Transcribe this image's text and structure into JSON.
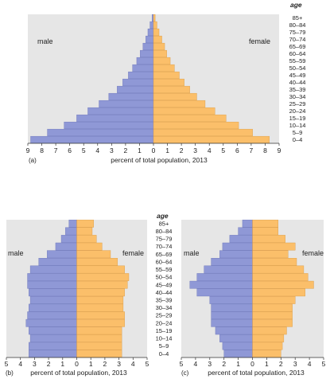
{
  "age_groups": [
    "0–4",
    "5–9",
    "10–14",
    "15–19",
    "20–24",
    "25–29",
    "30–34",
    "35–39",
    "40–44",
    "45–49",
    "50–54",
    "55–59",
    "60–64",
    "65–69",
    "70–74",
    "75–79",
    "80–84",
    "85+"
  ],
  "colors": {
    "male": "#8f98d6",
    "female": "#fbbf6a",
    "male_stroke": "#6a73b8",
    "female_stroke": "#d99a44",
    "panel": "#e6e6e6"
  },
  "chart_data": [
    {
      "type": "bar",
      "orientation": "horizontal-population-pyramid",
      "panel_label": "(a)",
      "xlabel": "percent of total population, 2013",
      "age_axis_label": "age",
      "categories": [
        "0–4",
        "5–9",
        "10–14",
        "15–19",
        "20–24",
        "25–29",
        "30–34",
        "35–39",
        "40–44",
        "45–49",
        "50–54",
        "55–59",
        "60–64",
        "65–69",
        "70–74",
        "75–79",
        "80–84",
        "85+"
      ],
      "series": [
        {
          "name": "male",
          "values": [
            8.8,
            7.6,
            6.4,
            5.5,
            4.7,
            3.9,
            3.2,
            2.6,
            2.2,
            1.8,
            1.5,
            1.2,
            0.95,
            0.75,
            0.55,
            0.4,
            0.25,
            0.1
          ]
        },
        {
          "name": "female",
          "values": [
            8.3,
            7.1,
            6.1,
            5.2,
            4.4,
            3.7,
            3.1,
            2.6,
            2.2,
            1.85,
            1.5,
            1.2,
            0.95,
            0.8,
            0.6,
            0.4,
            0.25,
            0.12
          ]
        }
      ],
      "xlim": [
        -9,
        9
      ],
      "xticks": [
        "9",
        "8",
        "7",
        "6",
        "5",
        "4",
        "3",
        "2",
        "1",
        "0",
        "1",
        "2",
        "3",
        "4",
        "5",
        "6",
        "7",
        "8",
        "9"
      ]
    },
    {
      "type": "bar",
      "orientation": "horizontal-population-pyramid",
      "panel_label": "(b)",
      "xlabel": "percent of total population, 2013",
      "age_axis_label": "age",
      "categories": [
        "0–4",
        "5–9",
        "10–14",
        "15–19",
        "20–24",
        "25–29",
        "30–34",
        "35–39",
        "40–44",
        "45–49",
        "50–54",
        "55–59",
        "60–64",
        "65–69",
        "70–74",
        "75–79",
        "80–84",
        "85+"
      ],
      "series": [
        {
          "name": "male",
          "values": [
            3.4,
            3.4,
            3.3,
            3.4,
            3.6,
            3.5,
            3.4,
            3.3,
            3.4,
            3.5,
            3.5,
            3.3,
            2.7,
            2.1,
            1.5,
            1.1,
            0.8,
            0.55
          ]
        },
        {
          "name": "female",
          "values": [
            3.2,
            3.2,
            3.2,
            3.2,
            3.4,
            3.4,
            3.3,
            3.3,
            3.4,
            3.6,
            3.7,
            3.4,
            2.9,
            2.4,
            1.8,
            1.4,
            1.1,
            1.2
          ]
        }
      ],
      "xlim": [
        -5,
        5
      ],
      "xticks": [
        "5",
        "4",
        "3",
        "2",
        "1",
        "0",
        "1",
        "2",
        "3",
        "4",
        "5"
      ]
    },
    {
      "type": "bar",
      "orientation": "horizontal-population-pyramid",
      "panel_label": "(c)",
      "xlabel": "percent of total population, 2013",
      "categories": [
        "0–4",
        "5–9",
        "10–14",
        "15–19",
        "20–24",
        "25–29",
        "30–34",
        "35–39",
        "40–44",
        "45–49",
        "50–54",
        "55–59",
        "60–64",
        "65–69",
        "70–74",
        "75–79",
        "80–84",
        "85+"
      ],
      "series": [
        {
          "name": "male",
          "values": [
            2.0,
            2.1,
            2.3,
            2.6,
            2.9,
            2.9,
            2.9,
            3.0,
            3.9,
            4.4,
            3.9,
            3.4,
            2.9,
            2.3,
            2.1,
            1.6,
            1.0,
            0.7
          ]
        },
        {
          "name": "female",
          "values": [
            2.0,
            2.1,
            2.2,
            2.4,
            2.8,
            2.8,
            2.8,
            3.0,
            3.7,
            4.3,
            3.9,
            3.6,
            3.1,
            2.5,
            3.0,
            2.3,
            1.8,
            1.8
          ]
        }
      ],
      "xlim": [
        -5,
        5
      ],
      "xticks": [
        "5",
        "4",
        "3",
        "2",
        "1",
        "0",
        "1",
        "2",
        "3",
        "4",
        "5"
      ]
    }
  ]
}
